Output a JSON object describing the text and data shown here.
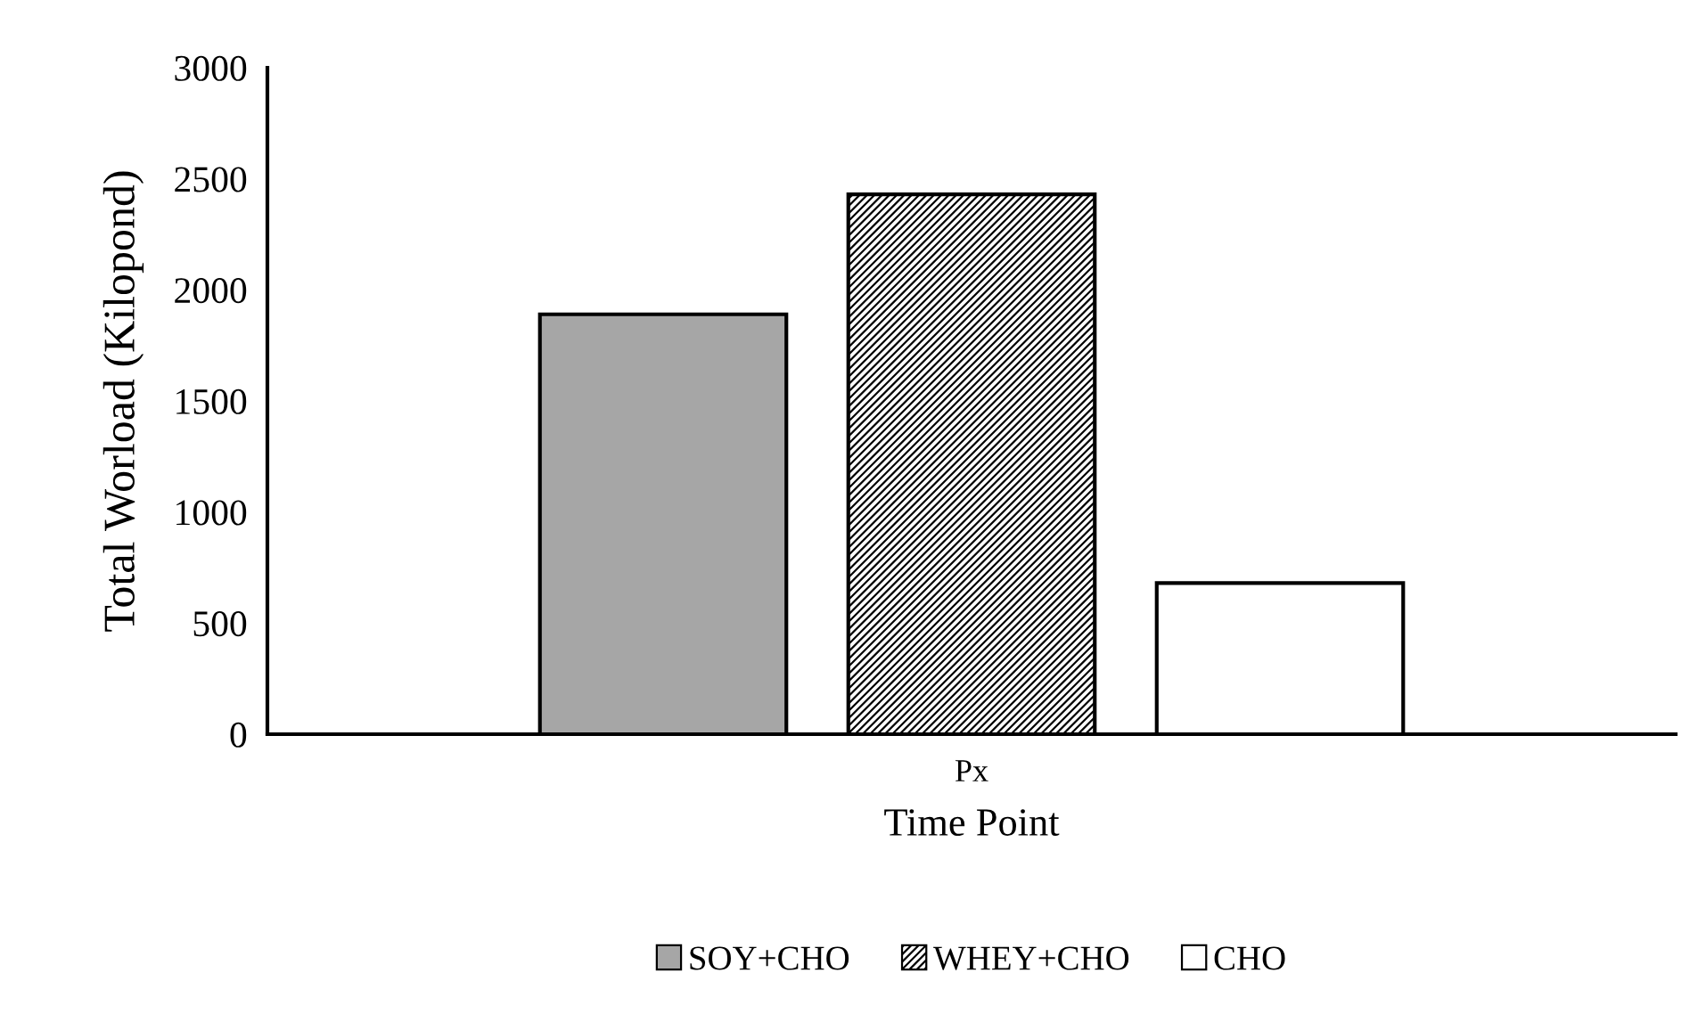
{
  "chart_data": {
    "type": "bar",
    "xlabel": "Time Point",
    "ylabel": "Total Worload (Kilopond)",
    "categories": [
      "Px"
    ],
    "series": [
      {
        "name": "SOY+CHO",
        "color": "#a6a6a6",
        "values": [
          1890
        ]
      },
      {
        "name": "WHEY+CHO",
        "color": "#000000",
        "values": [
          2430
        ]
      },
      {
        "name": "CHO",
        "color": "#ffffff",
        "values": [
          680
        ]
      }
    ],
    "ylim": [
      0,
      3000
    ],
    "yticks": [
      0,
      500,
      1000,
      1500,
      2000,
      2500,
      3000
    ],
    "grid": false,
    "legend": "bottom"
  }
}
